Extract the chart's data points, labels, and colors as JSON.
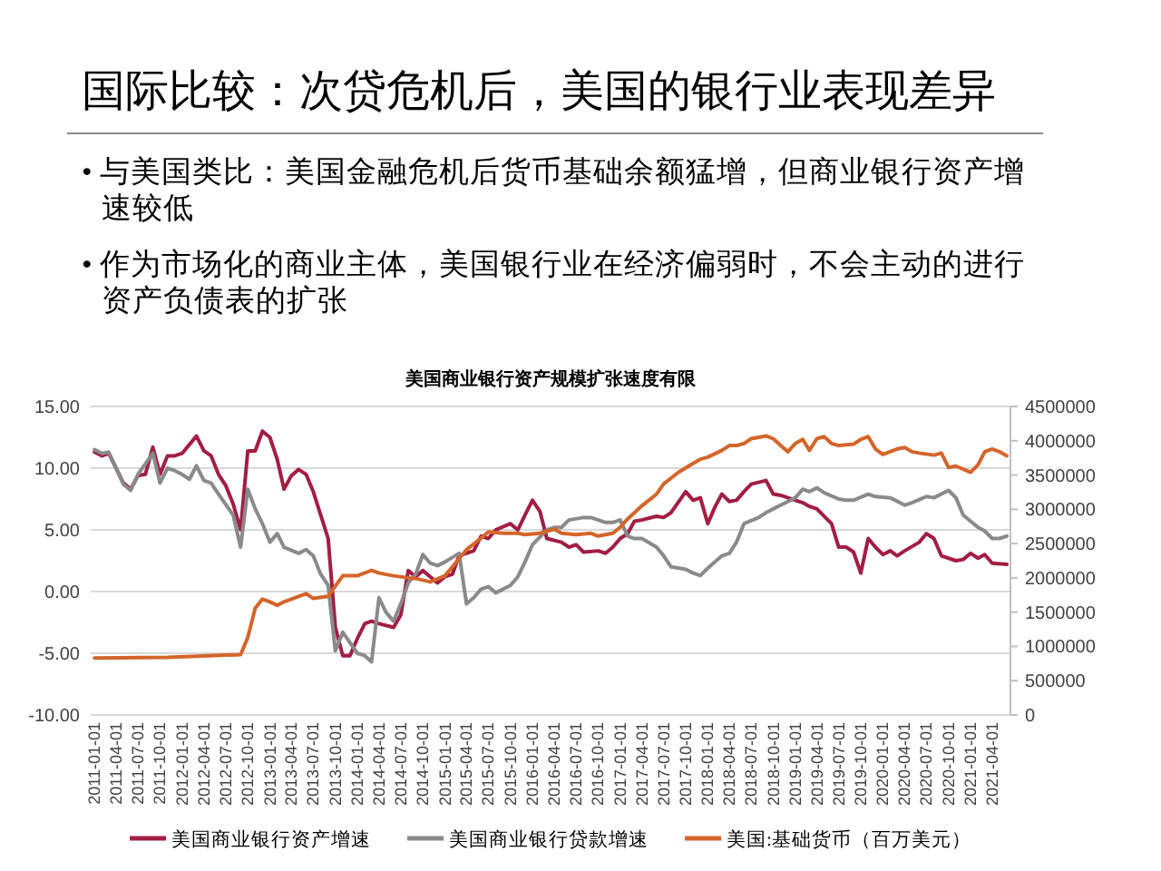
{
  "chart_data": {
    "type": "line",
    "title": "国际比较：次贷危机后，美国的银行业表现差异",
    "subtitle": "美国商业银行资产规模扩张速度有限",
    "annotations": [
      "• 与美国类比：美国金融危机后货币基础余额猛增，但商业银行资产增速较低",
      "• 作为市场化的商业主体，美国银行业在经济偏弱时，不会主动的进行资产负债表的扩张"
    ],
    "xlim": [
      "2010-12-16",
      "2021-06-16"
    ],
    "xticks": [
      "2011-01-01",
      "2011-04-01",
      "2011-07-01",
      "2011-10-01",
      "2012-01-01",
      "2012-04-01",
      "2012-07-01",
      "2012-10-01",
      "2013-01-01",
      "2013-04-01",
      "2013-07-01",
      "2013-10-01",
      "2014-01-01",
      "2014-04-01",
      "2014-07-01",
      "2014-10-01",
      "2015-01-01",
      "2015-04-01",
      "2015-07-01",
      "2015-10-01",
      "2016-01-01",
      "2016-04-01",
      "2016-07-01",
      "2016-10-01",
      "2017-01-01",
      "2017-04-01",
      "2017-07-01",
      "2017-10-01",
      "2018-01-01",
      "2018-04-01",
      "2018-07-01",
      "2018-10-01",
      "2019-01-01",
      "2019-04-01",
      "2019-07-01",
      "2019-10-01",
      "2020-01-01",
      "2020-04-01",
      "2020-07-01",
      "2020-10-01",
      "2021-01-01",
      "2021-04-01"
    ],
    "ylim": [
      -10,
      15
    ],
    "yticks": [
      {
        "value": -10,
        "label": "-10.00"
      },
      {
        "value": -5,
        "label": "-5.00"
      },
      {
        "value": 0,
        "label": "0.00"
      },
      {
        "value": 5,
        "label": "5.00"
      },
      {
        "value": 10,
        "label": "10.00"
      },
      {
        "value": 15,
        "label": "15.00"
      }
    ],
    "y2lim": [
      0,
      4500000
    ],
    "y2ticks": [
      0,
      500000,
      1000000,
      1500000,
      2000000,
      2500000,
      3000000,
      3500000,
      4000000,
      4500000
    ],
    "grid": "y",
    "legend": "bottom",
    "line_style": "solid",
    "series": [
      {
        "name": "美国商业银行资产增速",
        "color": "#a31d42",
        "x": [
          "2011-01",
          "2011-02",
          "2011-03",
          "2011-04",
          "2011-05",
          "2011-06",
          "2011-07",
          "2011-08",
          "2011-09",
          "2011-10",
          "2011-11",
          "2011-12",
          "2012-01",
          "2012-03",
          "2012-04",
          "2012-05",
          "2012-06",
          "2012-07",
          "2012-08",
          "2012-09",
          "2012-10",
          "2012-11",
          "2012-12",
          "2013-01",
          "2013-02",
          "2013-03",
          "2013-04",
          "2013-05",
          "2013-06",
          "2013-07",
          "2013-08",
          "2013-09",
          "2013-10",
          "2013-11",
          "2013-12",
          "2014-01",
          "2014-02",
          "2014-03",
          "2014-04",
          "2014-06",
          "2014-07",
          "2014-08",
          "2014-09",
          "2014-10",
          "2014-11",
          "2014-12",
          "2015-01",
          "2015-02",
          "2015-03",
          "2015-05",
          "2015-06",
          "2015-07",
          "2015-08",
          "2015-10",
          "2015-11",
          "2015-12",
          "2016-01",
          "2016-02",
          "2016-03",
          "2016-05",
          "2016-06",
          "2016-07",
          "2016-08",
          "2016-10",
          "2016-11",
          "2016-12",
          "2017-01",
          "2017-02",
          "2017-03",
          "2017-04",
          "2017-06",
          "2017-07",
          "2017-08",
          "2017-10",
          "2017-11",
          "2017-12",
          "2018-01",
          "2018-02",
          "2018-03",
          "2018-04",
          "2018-05",
          "2018-06",
          "2018-07",
          "2018-09",
          "2018-10",
          "2018-11",
          "2019-01",
          "2019-02",
          "2019-03",
          "2019-04",
          "2019-06",
          "2019-07",
          "2019-08",
          "2019-09",
          "2019-10",
          "2019-11",
          "2019-12",
          "2020-01",
          "2020-02",
          "2020-03",
          "2020-04",
          "2020-06",
          "2020-07",
          "2020-08",
          "2020-09",
          "2020-11",
          "2020-12",
          "2021-01",
          "2021-02",
          "2021-03",
          "2021-04",
          "2021-06"
        ],
        "values": [
          11.3,
          11.0,
          11.2,
          10.0,
          8.8,
          8.3,
          9.4,
          9.5,
          11.7,
          9.5,
          11.0,
          11.0,
          11.2,
          12.6,
          11.4,
          11.0,
          9.5,
          8.6,
          7.1,
          5.0,
          11.4,
          11.4,
          13.0,
          12.5,
          10.7,
          8.3,
          9.4,
          9.9,
          9.5,
          8.1,
          6.2,
          4.3,
          -2.9,
          -5.2,
          -5.2,
          -3.8,
          -2.6,
          -2.4,
          -2.6,
          -2.9,
          -1.9,
          1.7,
          1.2,
          1.7,
          1.2,
          0.7,
          1.2,
          1.4,
          2.9,
          3.3,
          4.5,
          4.3,
          5.0,
          5.5,
          5.0,
          6.2,
          7.4,
          6.5,
          4.3,
          4.0,
          3.6,
          3.8,
          3.2,
          3.3,
          3.1,
          3.6,
          4.3,
          4.7,
          5.7,
          5.8,
          6.1,
          6.0,
          6.4,
          8.1,
          7.4,
          7.6,
          5.5,
          6.9,
          7.9,
          7.3,
          7.4,
          8.1,
          8.7,
          9.0,
          7.9,
          7.8,
          7.4,
          7.2,
          6.9,
          6.7,
          5.5,
          3.6,
          3.6,
          3.2,
          1.5,
          4.3,
          3.6,
          3.0,
          3.3,
          2.9,
          3.3,
          4.0,
          4.7,
          4.3,
          2.9,
          2.5,
          2.6,
          3.1,
          2.7,
          3.0,
          2.3,
          2.2
        ]
      },
      {
        "name": "美国商业银行贷款增速",
        "color": "#8a8a8a",
        "x": [
          "2011-01",
          "2011-02",
          "2011-03",
          "2011-04",
          "2011-05",
          "2011-06",
          "2011-07",
          "2011-09",
          "2011-10",
          "2011-11",
          "2011-12",
          "2012-01",
          "2012-02",
          "2012-03",
          "2012-04",
          "2012-05",
          "2012-06",
          "2012-08",
          "2012-09",
          "2012-10",
          "2012-11",
          "2012-12",
          "2013-01",
          "2013-02",
          "2013-03",
          "2013-05",
          "2013-06",
          "2013-07",
          "2013-08",
          "2013-09",
          "2013-10",
          "2013-11",
          "2014-01",
          "2014-02",
          "2014-03",
          "2014-04",
          "2014-05",
          "2014-06",
          "2014-07",
          "2014-08",
          "2014-09",
          "2014-10",
          "2014-11",
          "2014-12",
          "2015-01",
          "2015-03",
          "2015-04",
          "2015-05",
          "2015-06",
          "2015-07",
          "2015-08",
          "2015-10",
          "2015-11",
          "2015-12",
          "2016-01",
          "2016-03",
          "2016-04",
          "2016-05",
          "2016-06",
          "2016-08",
          "2016-09",
          "2016-10",
          "2016-11",
          "2016-12",
          "2017-01",
          "2017-02",
          "2017-03",
          "2017-04",
          "2017-06",
          "2017-07",
          "2017-08",
          "2017-10",
          "2017-11",
          "2017-12",
          "2018-01",
          "2018-03",
          "2018-04",
          "2018-05",
          "2018-06",
          "2018-08",
          "2018-09",
          "2018-10",
          "2018-11",
          "2019-01",
          "2019-02",
          "2019-03",
          "2019-04",
          "2019-05",
          "2019-07",
          "2019-08",
          "2019-09",
          "2019-11",
          "2019-12",
          "2020-02",
          "2020-04",
          "2020-05",
          "2020-07",
          "2020-08",
          "2020-10",
          "2020-11",
          "2020-12",
          "2021-02",
          "2021-03",
          "2021-04",
          "2021-05",
          "2021-06"
        ],
        "values": [
          11.5,
          11.2,
          11.3,
          10.0,
          8.7,
          8.2,
          9.5,
          11.2,
          8.8,
          10.0,
          9.8,
          9.5,
          9.1,
          10.2,
          9.0,
          8.8,
          7.9,
          6.2,
          3.6,
          8.3,
          6.7,
          5.5,
          4.0,
          4.7,
          3.6,
          3.1,
          3.4,
          2.9,
          1.4,
          0.5,
          -4.8,
          -3.3,
          -5.0,
          -5.2,
          -5.7,
          -0.5,
          -1.7,
          -2.4,
          -1.0,
          0.7,
          1.4,
          3.0,
          2.3,
          2.1,
          2.4,
          3.1,
          -1.0,
          -0.5,
          0.2,
          0.4,
          -0.1,
          0.5,
          1.2,
          2.4,
          3.8,
          5.0,
          5.2,
          5.2,
          5.8,
          6.0,
          6.0,
          5.8,
          5.6,
          5.6,
          5.8,
          4.5,
          4.3,
          4.3,
          3.6,
          2.9,
          2.0,
          1.8,
          1.5,
          1.3,
          1.9,
          2.9,
          3.1,
          4.0,
          5.5,
          6.0,
          6.4,
          6.7,
          7.0,
          7.6,
          8.3,
          8.1,
          8.4,
          8.0,
          7.5,
          7.4,
          7.4,
          7.9,
          7.7,
          7.6,
          7.0,
          7.2,
          7.7,
          7.6,
          8.2,
          7.6,
          6.2,
          5.2,
          4.9,
          4.3,
          4.3,
          4.5
        ]
      },
      {
        "name": "美国:基础货币（百万美元）",
        "color": "#d5652a",
        "axis": "y2",
        "x": [
          "2011-01",
          "2011-11",
          "2012-09",
          "2012-10",
          "2012-11",
          "2012-12",
          "2013-01",
          "2013-02",
          "2013-03",
          "2013-05",
          "2013-06",
          "2013-07",
          "2013-09",
          "2013-10",
          "2013-11",
          "2014-01",
          "2014-03",
          "2014-04",
          "2014-06",
          "2014-08",
          "2014-09",
          "2014-11",
          "2015-01",
          "2015-02",
          "2015-04",
          "2015-06",
          "2015-07",
          "2015-09",
          "2015-11",
          "2015-12",
          "2016-02",
          "2016-04",
          "2016-05",
          "2016-07",
          "2016-09",
          "2016-10",
          "2016-12",
          "2017-01",
          "2017-02",
          "2017-04",
          "2017-06",
          "2017-07",
          "2017-09",
          "2017-11",
          "2017-12",
          "2018-01",
          "2018-03",
          "2018-04",
          "2018-05",
          "2018-06",
          "2018-07",
          "2018-09",
          "2018-10",
          "2018-11",
          "2018-12",
          "2019-01",
          "2019-02",
          "2019-03",
          "2019-04",
          "2019-05",
          "2019-06",
          "2019-07",
          "2019-09",
          "2019-10",
          "2019-11",
          "2019-12",
          "2020-01",
          "2020-03",
          "2020-04",
          "2020-05",
          "2020-06",
          "2020-08",
          "2020-09",
          "2020-10",
          "2020-11",
          "2021-01",
          "2021-02",
          "2021-03",
          "2021-04",
          "2021-05",
          "2021-06"
        ],
        "values": [
          830000,
          840000,
          880000,
          1130000,
          1560000,
          1690000,
          1650000,
          1600000,
          1650000,
          1730000,
          1770000,
          1700000,
          1730000,
          1880000,
          2030000,
          2030000,
          2110000,
          2070000,
          2030000,
          2000000,
          1990000,
          1940000,
          2030000,
          2160000,
          2410000,
          2580000,
          2670000,
          2650000,
          2650000,
          2630000,
          2650000,
          2710000,
          2650000,
          2630000,
          2650000,
          2610000,
          2650000,
          2740000,
          2860000,
          3050000,
          3220000,
          3370000,
          3540000,
          3670000,
          3730000,
          3760000,
          3860000,
          3930000,
          3930000,
          3960000,
          4030000,
          4070000,
          4030000,
          3930000,
          3840000,
          3960000,
          4020000,
          3860000,
          4030000,
          4060000,
          3960000,
          3930000,
          3950000,
          4020000,
          4060000,
          3880000,
          3800000,
          3880000,
          3900000,
          3840000,
          3820000,
          3790000,
          3820000,
          3610000,
          3630000,
          3540000,
          3650000,
          3840000,
          3880000,
          3840000,
          3780000
        ]
      }
    ]
  }
}
